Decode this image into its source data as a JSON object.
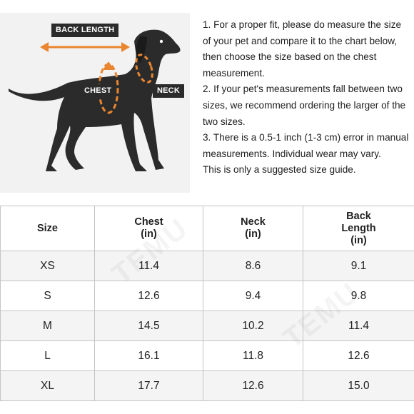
{
  "diagram": {
    "labels": {
      "back_length": "BACK LENGTH",
      "chest": "CHEST",
      "neck": "NECK"
    },
    "accent_color": "#e9862f",
    "dog_color": "#2b2b2b"
  },
  "instructions": [
    "1. For a proper fit, please do measure the size of your pet and compare it to the chart below, then choose the size based on the chest measurement.",
    "2. If your pet's measurements fall between two sizes, we recommend ordering the larger of the two sizes.",
    "3. There is a 0.5-1 inch (1-3 cm) error in manual measurements. Individual wear may vary.",
    "This is only a suggested size guide."
  ],
  "table": {
    "headers": {
      "size": "Size",
      "chest_line1": "Chest",
      "chest_line2": "(in)",
      "neck_line1": "Neck",
      "neck_line2": "(in)",
      "back_line1": "Back",
      "back_line2": "Length",
      "back_line3": "(in)"
    },
    "rows": [
      {
        "size": "XS",
        "chest": "11.4",
        "neck": "8.6",
        "back": "9.1"
      },
      {
        "size": "S",
        "chest": "12.6",
        "neck": "9.4",
        "back": "9.8"
      },
      {
        "size": "M",
        "chest": "14.5",
        "neck": "10.2",
        "back": "11.4"
      },
      {
        "size": "L",
        "chest": "16.1",
        "neck": "11.8",
        "back": "12.6"
      },
      {
        "size": "XL",
        "chest": "17.7",
        "neck": "12.6",
        "back": "15.0"
      }
    ]
  },
  "watermark": "TEMU"
}
